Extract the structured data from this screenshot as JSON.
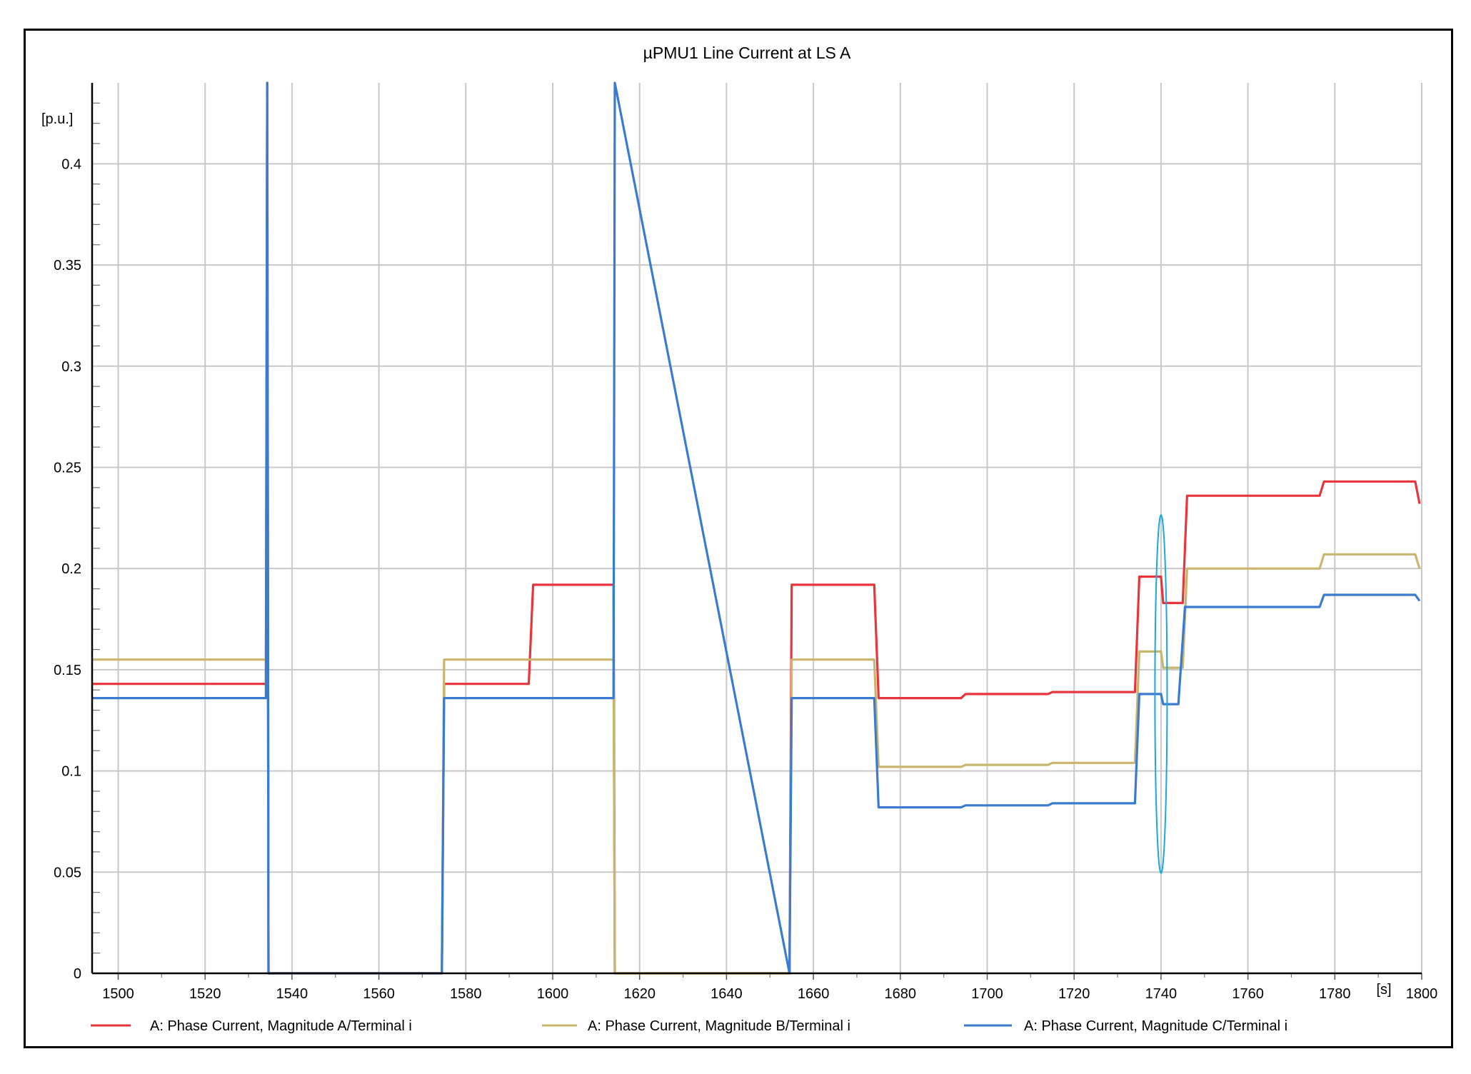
{
  "chart_data": {
    "type": "line",
    "title": "µPMU1 Line Current at LS A",
    "ylabel": "[p.u.]",
    "xunit": "[s]",
    "xlim": [
      1494,
      1800
    ],
    "ylim": [
      0,
      0.44
    ],
    "x_ticks": [
      1500,
      1520,
      1540,
      1560,
      1580,
      1600,
      1620,
      1640,
      1660,
      1680,
      1700,
      1720,
      1740,
      1760,
      1780,
      1800
    ],
    "y_ticks": [
      0,
      0.05,
      0.1,
      0.15,
      0.2,
      0.25,
      0.3,
      0.35,
      0.4
    ],
    "y_tick_labels": [
      "0",
      "0.05",
      "0.1",
      "0.15",
      "0.2",
      "0.25",
      "0.3",
      "0.35",
      "0.4"
    ],
    "grid": true,
    "legend_position": "bottom",
    "series": [
      {
        "name": "A: Phase Current, Magnitude A/Terminal i",
        "color": "#e8353b",
        "x": [
          1494,
          1534,
          1534.3,
          1534.6,
          1574.5,
          1575,
          1594.5,
          1595.5,
          1614,
          1614.3,
          1654.5,
          1655,
          1674,
          1675,
          1694,
          1695,
          1714,
          1715,
          1734,
          1735,
          1740,
          1740.5,
          1745,
          1746,
          1776.5,
          1777.5,
          1798.5,
          1799.5
        ],
        "y": [
          0.143,
          0.143,
          0.5,
          0,
          0,
          0.143,
          0.143,
          0.192,
          0.192,
          0,
          0,
          0.192,
          0.192,
          0.136,
          0.136,
          0.138,
          0.138,
          0.139,
          0.139,
          0.196,
          0.196,
          0.183,
          0.183,
          0.236,
          0.236,
          0.243,
          0.243,
          0.232
        ]
      },
      {
        "name": "A: Phase Current, Magnitude B/Terminal i",
        "color": "#c9b56e",
        "x": [
          1494,
          1534,
          1534.3,
          1534.6,
          1574.5,
          1575,
          1614,
          1614.3,
          1654.5,
          1655,
          1674,
          1675,
          1694,
          1695,
          1714,
          1715,
          1734,
          1735,
          1740,
          1740.5,
          1745,
          1746,
          1776.5,
          1777.5,
          1798.5,
          1799.5
        ],
        "y": [
          0.155,
          0.155,
          0.5,
          0,
          0,
          0.155,
          0.155,
          0,
          0,
          0.155,
          0.155,
          0.102,
          0.102,
          0.103,
          0.103,
          0.104,
          0.104,
          0.159,
          0.159,
          0.151,
          0.151,
          0.2,
          0.2,
          0.207,
          0.207,
          0.2
        ]
      },
      {
        "name": "A: Phase Current, Magnitude C/Terminal i",
        "color": "#3a7bd0",
        "x": [
          1494,
          1534,
          1534.3,
          1534.6,
          1574.5,
          1575,
          1614,
          1614.3,
          1654.5,
          1655,
          1674,
          1675,
          1694,
          1695,
          1714,
          1715,
          1734,
          1735,
          1740,
          1740.5,
          1744,
          1745.5,
          1776.5,
          1777.5,
          1798.5,
          1799.5
        ],
        "y": [
          0.136,
          0.136,
          0.5,
          0,
          0,
          0.136,
          0.136,
          0.5,
          0,
          0.136,
          0.136,
          0.082,
          0.082,
          0.083,
          0.083,
          0.084,
          0.084,
          0.138,
          0.138,
          0.133,
          0.133,
          0.181,
          0.181,
          0.187,
          0.187,
          0.184
        ]
      }
    ],
    "annotations": [
      {
        "type": "ellipse",
        "cx": 1740,
        "cy": 0.138,
        "rx": 1.4,
        "ry": 0.0885,
        "color": "#1aa8e0"
      }
    ]
  }
}
